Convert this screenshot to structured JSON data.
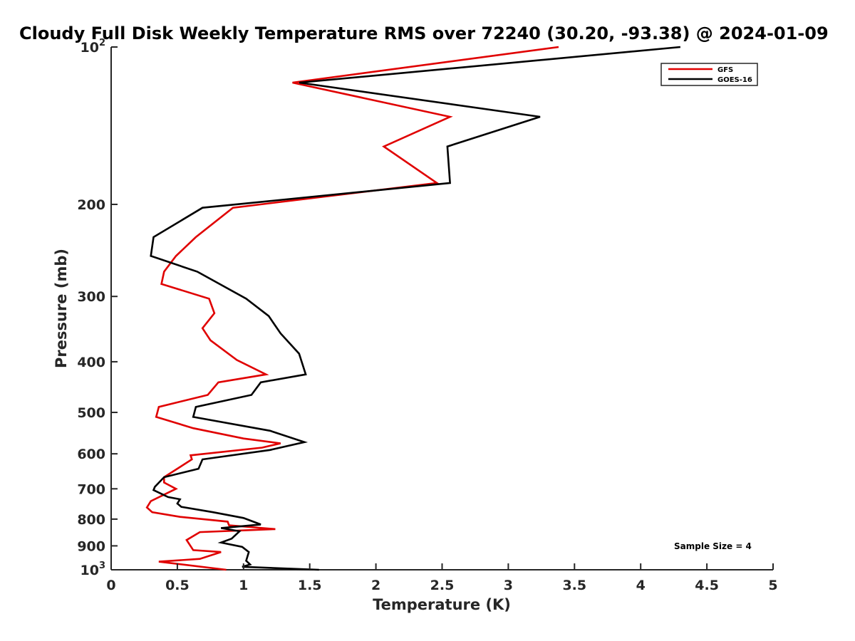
{
  "chart_data": {
    "type": "line",
    "title": "Cloudy Full Disk Weekly Temperature RMS over 72240 (30.20, -93.38) @ 2024-01-09",
    "xlabel": "Temperature (K)",
    "ylabel": "Pressure (mb)",
    "xlim": [
      0,
      5
    ],
    "ylim": [
      100,
      1000
    ],
    "y_scale": "log",
    "y_reversed": true,
    "xticks": [
      0,
      0.5,
      1,
      1.5,
      2,
      2.5,
      3,
      3.5,
      4,
      4.5,
      5
    ],
    "xtick_labels": [
      "0",
      "0.5",
      "1",
      "1.5",
      "2",
      "2.5",
      "3",
      "3.5",
      "4",
      "4.5",
      "5"
    ],
    "yticks": [
      100,
      200,
      300,
      400,
      500,
      600,
      700,
      800,
      900,
      1000
    ],
    "ytick_labels": [
      "10^2",
      "200",
      "300",
      "400",
      "500",
      "600",
      "700",
      "800",
      "900",
      "10^3"
    ],
    "grid": false,
    "legend_position": "top-right",
    "annotation": "Sample Size = 4",
    "series": [
      {
        "name": "GFS",
        "color": "#e00000",
        "x": [
          3.38,
          1.37,
          2.56,
          2.06,
          2.46,
          0.92,
          0.64,
          0.49,
          0.4,
          0.38,
          0.74,
          0.78,
          0.69,
          0.75,
          0.95,
          1.17,
          0.81,
          0.73,
          0.36,
          0.34,
          0.62,
          1.0,
          1.28,
          1.14,
          0.6,
          0.61,
          0.4,
          0.4,
          0.49,
          0.3,
          0.27,
          0.31,
          0.52,
          0.88,
          0.89,
          1.24,
          0.67,
          0.57,
          0.62,
          0.83,
          0.67,
          0.36,
          0.87
        ],
        "y": [
          100,
          117,
          136,
          155,
          182,
          203,
          231,
          251,
          269,
          284,
          303,
          323,
          345,
          364,
          397,
          423,
          438,
          463,
          488,
          510,
          536,
          561,
          573,
          584,
          604,
          615,
          665,
          681,
          700,
          739,
          760,
          776,
          792,
          809,
          822,
          836,
          847,
          877,
          917,
          925,
          953,
          965,
          1000
        ]
      },
      {
        "name": "GOES-16",
        "color": "#000000",
        "x": [
          4.3,
          1.42,
          3.24,
          2.54,
          2.56,
          0.69,
          0.32,
          0.3,
          0.65,
          1.02,
          1.19,
          1.28,
          1.42,
          1.47,
          1.13,
          1.06,
          0.64,
          0.62,
          1.2,
          1.46,
          1.2,
          0.69,
          0.66,
          0.4,
          0.33,
          0.32,
          0.43,
          0.52,
          0.5,
          0.53,
          0.77,
          1.0,
          1.13,
          0.83,
          0.97,
          0.91,
          0.83,
          0.99,
          1.04,
          1.02,
          1.05,
          0.99,
          1.57
        ],
        "y": [
          100,
          117,
          136,
          155,
          182,
          203,
          231,
          251,
          269,
          303,
          327,
          353,
          386,
          423,
          438,
          463,
          488,
          510,
          542,
          570,
          590,
          615,
          641,
          665,
          694,
          704,
          726,
          733,
          747,
          758,
          776,
          796,
          819,
          832,
          844,
          872,
          887,
          904,
          925,
          961,
          977,
          987,
          1000
        ]
      }
    ]
  }
}
